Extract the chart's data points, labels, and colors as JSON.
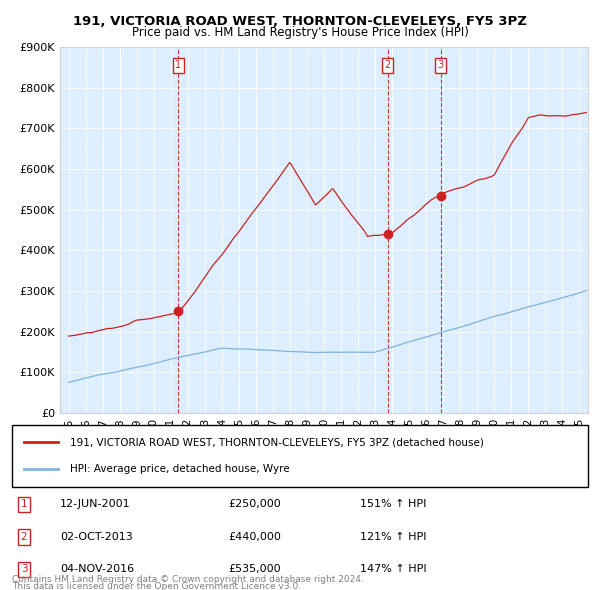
{
  "title": "191, VICTORIA ROAD WEST, THORNTON-CLEVELEYS, FY5 3PZ",
  "subtitle": "Price paid vs. HM Land Registry's House Price Index (HPI)",
  "transactions": [
    {
      "label": "1",
      "date_str": "12-JUN-2001",
      "price": 250000,
      "hpi_pct": "151% ↑ HPI",
      "x_year": 2001.45
    },
    {
      "label": "2",
      "date_str": "02-OCT-2013",
      "price": 440000,
      "hpi_pct": "121% ↑ HPI",
      "x_year": 2013.75
    },
    {
      "label": "3",
      "date_str": "04-NOV-2016",
      "price": 535000,
      "hpi_pct": "147% ↑ HPI",
      "x_year": 2016.84
    }
  ],
  "legend_line1": "191, VICTORIA ROAD WEST, THORNTON-CLEVELEYS, FY5 3PZ (detached house)",
  "legend_line2": "HPI: Average price, detached house, Wyre",
  "footer1": "Contains HM Land Registry data © Crown copyright and database right 2024.",
  "footer2": "This data is licensed under the Open Government Licence v3.0.",
  "price_line_color": "#cc2222",
  "hpi_line_color": "#7fb3d9",
  "vline_color": "#cc2222",
  "bg_color": "#ddeeff",
  "ylim": [
    0,
    900000
  ],
  "xlim_start": 1994.5,
  "xlim_end": 2025.5,
  "ytick_vals": [
    0,
    100000,
    200000,
    300000,
    400000,
    500000,
    600000,
    700000,
    800000,
    900000
  ],
  "ytick_labels": [
    "£0",
    "£100K",
    "£200K",
    "£300K",
    "£400K",
    "£500K",
    "£600K",
    "£700K",
    "£800K",
    "£900K"
  ],
  "xticks": [
    1995,
    1996,
    1997,
    1998,
    1999,
    2000,
    2001,
    2002,
    2003,
    2004,
    2005,
    2006,
    2007,
    2008,
    2009,
    2010,
    2011,
    2012,
    2013,
    2014,
    2015,
    2016,
    2017,
    2018,
    2019,
    2020,
    2021,
    2022,
    2023,
    2024,
    2025
  ]
}
